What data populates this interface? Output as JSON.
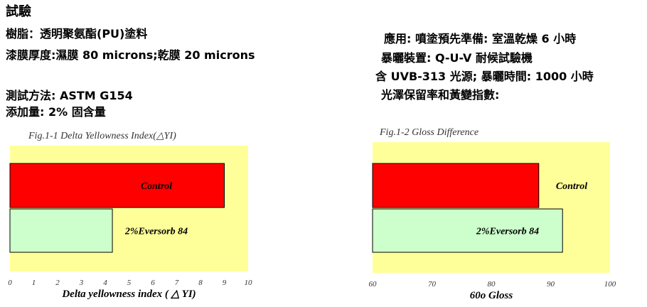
{
  "header": {
    "title": "試驗",
    "left_lines": [
      "樹脂：透明聚氨酯(PU)塗料",
      "漆膜厚度:濕膜  80 microns;乾膜  20 microns",
      "測試方法: ASTM G154",
      "添加量: 2%  固含量"
    ],
    "right_lines": [
      "應用: 噴塗預先準備: 室溫乾燥 6 小時",
      "暴曬裝置: Q-U-V  耐候試驗機",
      "含  UVB-313 光源; 暴曬時間: 1000 小時",
      "光澤保留率和黃變指數:"
    ]
  },
  "chart_data": [
    {
      "type": "hbar",
      "title": "Fig.1-1 Delta Yellowness Index(△YI)",
      "x_label": "Delta yellowness index ( △ YI)",
      "categories": [
        "Control",
        "2%Eversorb 84"
      ],
      "values": [
        9.0,
        4.3
      ],
      "colors": [
        "#ff0000",
        "#ccffcc"
      ],
      "xlim": [
        0,
        10
      ],
      "xticks": [
        0,
        1,
        2,
        3,
        4,
        5,
        6,
        7,
        8,
        9,
        10
      ],
      "background": "#ffff99"
    },
    {
      "type": "hbar",
      "title": "Fig.1-2 Gloss Difference",
      "x_label": "60o Gloss",
      "categories": [
        "Control",
        "2%Eversorb 84"
      ],
      "values": [
        88,
        92
      ],
      "colors": [
        "#ff0000",
        "#ccffcc"
      ],
      "xlim": [
        60,
        100
      ],
      "xticks": [
        60,
        70,
        80,
        90,
        100
      ],
      "background": "#ffff99"
    }
  ]
}
